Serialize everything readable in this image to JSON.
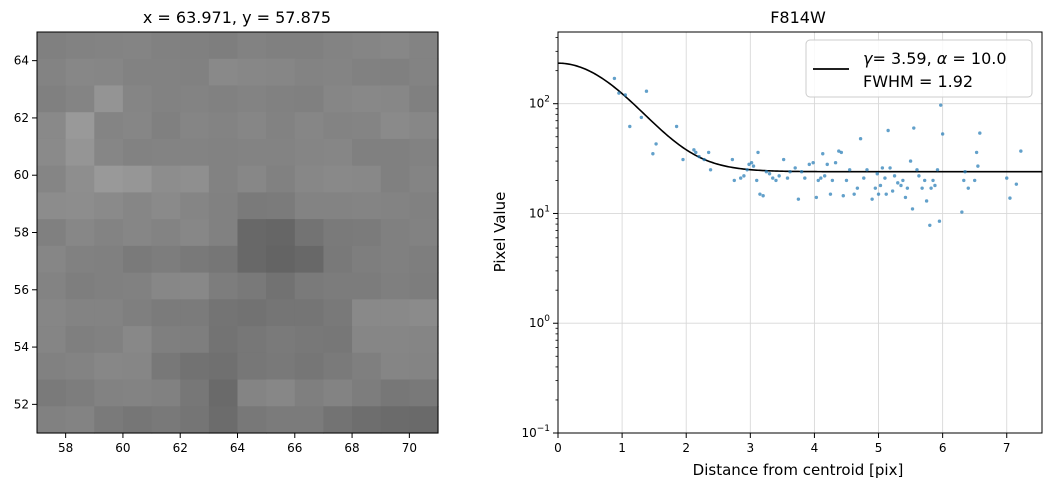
{
  "chart_data": [
    {
      "type": "heatmap",
      "title": "x = 63.971, y = 57.875",
      "xlim": [
        57,
        71
      ],
      "ylim": [
        51,
        65
      ],
      "xticks": [
        58,
        60,
        62,
        64,
        66,
        68,
        70
      ],
      "yticks": [
        52,
        54,
        56,
        58,
        60,
        62,
        64
      ],
      "colormap": "gray",
      "grid": false,
      "pixel_gray": [
        [
          128,
          130,
          131,
          132,
          129,
          128,
          126,
          130,
          128,
          128,
          131,
          133,
          135,
          131
        ],
        [
          131,
          135,
          134,
          130,
          130,
          129,
          137,
          135,
          134,
          131,
          132,
          129,
          128,
          131
        ],
        [
          128,
          132,
          148,
          133,
          130,
          131,
          129,
          131,
          129,
          128,
          134,
          136,
          135,
          128
        ],
        [
          137,
          153,
          132,
          134,
          128,
          133,
          131,
          134,
          130,
          134,
          131,
          132,
          138,
          135
        ],
        [
          138,
          149,
          134,
          130,
          131,
          131,
          130,
          131,
          131,
          133,
          134,
          128,
          128,
          130
        ],
        [
          133,
          142,
          153,
          150,
          141,
          143,
          130,
          135,
          129,
          135,
          137,
          136,
          128,
          132
        ],
        [
          140,
          141,
          138,
          134,
          138,
          133,
          129,
          122,
          123,
          131,
          131,
          132,
          131,
          129
        ],
        [
          128,
          135,
          131,
          134,
          131,
          135,
          129,
          104,
          102,
          115,
          122,
          123,
          128,
          130
        ],
        [
          134,
          129,
          128,
          122,
          125,
          121,
          118,
          104,
          100,
          104,
          121,
          126,
          128,
          126
        ],
        [
          131,
          126,
          128,
          129,
          135,
          136,
          125,
          121,
          114,
          122,
          124,
          124,
          127,
          125
        ],
        [
          134,
          131,
          131,
          127,
          123,
          123,
          116,
          114,
          117,
          117,
          121,
          137,
          137,
          139
        ],
        [
          133,
          127,
          129,
          136,
          127,
          126,
          115,
          119,
          122,
          120,
          119,
          134,
          134,
          133
        ],
        [
          129,
          131,
          135,
          134,
          120,
          114,
          112,
          119,
          121,
          118,
          122,
          127,
          133,
          132
        ],
        [
          122,
          125,
          130,
          131,
          129,
          119,
          106,
          132,
          135,
          127,
          131,
          125,
          119,
          121
        ],
        [
          129,
          131,
          122,
          118,
          121,
          117,
          108,
          120,
          123,
          123,
          115,
          110,
          107,
          106
        ]
      ]
    },
    {
      "type": "scatter",
      "title": "F814W",
      "xlabel": "Distance from centroid [pix]",
      "ylabel": "Pixel Value",
      "xlim": [
        0,
        7.55
      ],
      "ylim": [
        0.1,
        450
      ],
      "yscale": "log",
      "xticks": [
        "0",
        "1",
        "2",
        "3",
        "4",
        "5",
        "6",
        "7"
      ],
      "yticks": [
        {
          "base": "10",
          "exp": "−1",
          "value": 0.1
        },
        {
          "base": "10",
          "exp": "0",
          "value": 1
        },
        {
          "base": "10",
          "exp": "1",
          "value": 10
        },
        {
          "base": "10",
          "exp": "2",
          "value": 100
        }
      ],
      "grid": true,
      "legend_position": "upper right",
      "legend": {
        "line1_prefix": "γ",
        "line1_rest": "= 3.59, ",
        "line1_alpha": "α",
        "line1_tail": " = 10.0",
        "line2": "FWHM = 1.92"
      },
      "fit": {
        "gamma": 3.59,
        "alpha": 10.0,
        "fwhm": 1.92,
        "amplitude": 210,
        "background": 24,
        "color": "#000000"
      },
      "point_color": "#1f77b4",
      "points": [
        [
          0.88,
          170
        ],
        [
          0.95,
          125
        ],
        [
          1.05,
          120
        ],
        [
          1.12,
          62
        ],
        [
          1.3,
          75
        ],
        [
          1.38,
          130
        ],
        [
          1.48,
          35
        ],
        [
          1.53,
          43
        ],
        [
          1.85,
          62
        ],
        [
          1.95,
          31
        ],
        [
          2.12,
          38
        ],
        [
          2.15,
          36
        ],
        [
          2.2,
          33
        ],
        [
          2.28,
          31
        ],
        [
          2.35,
          36
        ],
        [
          2.38,
          25
        ],
        [
          2.72,
          31
        ],
        [
          2.75,
          20
        ],
        [
          2.85,
          21
        ],
        [
          2.9,
          22
        ],
        [
          2.95,
          25
        ],
        [
          2.98,
          28
        ],
        [
          3.02,
          29
        ],
        [
          3.05,
          27
        ],
        [
          3.1,
          20
        ],
        [
          3.12,
          36
        ],
        [
          3.15,
          15
        ],
        [
          3.2,
          14.5
        ],
        [
          3.25,
          24
        ],
        [
          3.3,
          23
        ],
        [
          3.35,
          21
        ],
        [
          3.4,
          20
        ],
        [
          3.45,
          22
        ],
        [
          3.52,
          31
        ],
        [
          3.58,
          21
        ],
        [
          3.62,
          24
        ],
        [
          3.7,
          26
        ],
        [
          3.75,
          13.5
        ],
        [
          3.8,
          24
        ],
        [
          3.85,
          21
        ],
        [
          3.92,
          28
        ],
        [
          3.98,
          29
        ],
        [
          4.03,
          14
        ],
        [
          4.06,
          20
        ],
        [
          4.1,
          21
        ],
        [
          4.13,
          35
        ],
        [
          4.16,
          22
        ],
        [
          4.2,
          28
        ],
        [
          4.25,
          15
        ],
        [
          4.28,
          20
        ],
        [
          4.33,
          29
        ],
        [
          4.38,
          37
        ],
        [
          4.42,
          36
        ],
        [
          4.45,
          14.5
        ],
        [
          4.5,
          20
        ],
        [
          4.55,
          25
        ],
        [
          4.62,
          15
        ],
        [
          4.67,
          17
        ],
        [
          4.72,
          48
        ],
        [
          4.77,
          21
        ],
        [
          4.82,
          25
        ],
        [
          4.9,
          13.5
        ],
        [
          4.95,
          17
        ],
        [
          4.98,
          23
        ],
        [
          5.0,
          15
        ],
        [
          5.03,
          18
        ],
        [
          5.06,
          26
        ],
        [
          5.1,
          21
        ],
        [
          5.12,
          15
        ],
        [
          5.15,
          57
        ],
        [
          5.18,
          26
        ],
        [
          5.22,
          16
        ],
        [
          5.25,
          22
        ],
        [
          5.3,
          19
        ],
        [
          5.35,
          18
        ],
        [
          5.38,
          20
        ],
        [
          5.42,
          14
        ],
        [
          5.45,
          17
        ],
        [
          5.5,
          30
        ],
        [
          5.53,
          11
        ],
        [
          5.55,
          60
        ],
        [
          5.6,
          25
        ],
        [
          5.63,
          22
        ],
        [
          5.68,
          17
        ],
        [
          5.72,
          20
        ],
        [
          5.75,
          13
        ],
        [
          5.8,
          7.8
        ],
        [
          5.82,
          17
        ],
        [
          5.85,
          20
        ],
        [
          5.88,
          18
        ],
        [
          5.92,
          25
        ],
        [
          5.95,
          8.5
        ],
        [
          5.97,
          97
        ],
        [
          6.0,
          53
        ],
        [
          6.3,
          10.3
        ],
        [
          6.33,
          20
        ],
        [
          6.35,
          24
        ],
        [
          6.4,
          17
        ],
        [
          6.5,
          20
        ],
        [
          6.53,
          36
        ],
        [
          6.55,
          27
        ],
        [
          6.58,
          54
        ],
        [
          7.0,
          21
        ],
        [
          7.05,
          13.8
        ],
        [
          7.15,
          18.5
        ],
        [
          7.22,
          37
        ]
      ]
    }
  ]
}
